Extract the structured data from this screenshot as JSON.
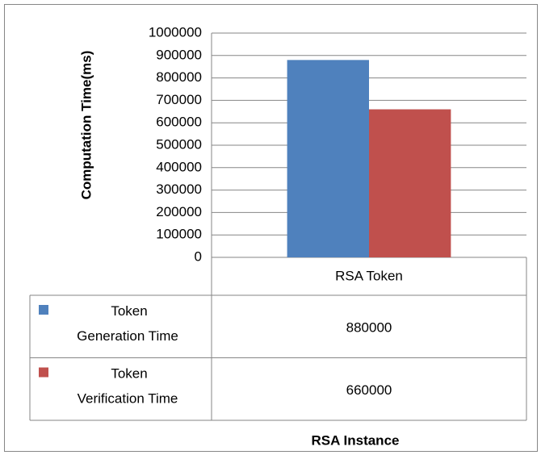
{
  "chart_data": {
    "type": "bar",
    "categories": [
      "RSA Token"
    ],
    "series": [
      {
        "name": "Token Generation Time",
        "color": "#4f81bd",
        "values": [
          880000
        ]
      },
      {
        "name": "Token Verification Time",
        "color": "#c0504d",
        "values": [
          660000
        ]
      }
    ],
    "ylabel": "Computation Time(ms)",
    "xlabel": "RSA Instance",
    "ylim": [
      0,
      1000000
    ],
    "yticks": [
      0,
      100000,
      200000,
      300000,
      400000,
      500000,
      600000,
      700000,
      800000,
      900000,
      1000000
    ],
    "grid": true,
    "data_table": true
  }
}
